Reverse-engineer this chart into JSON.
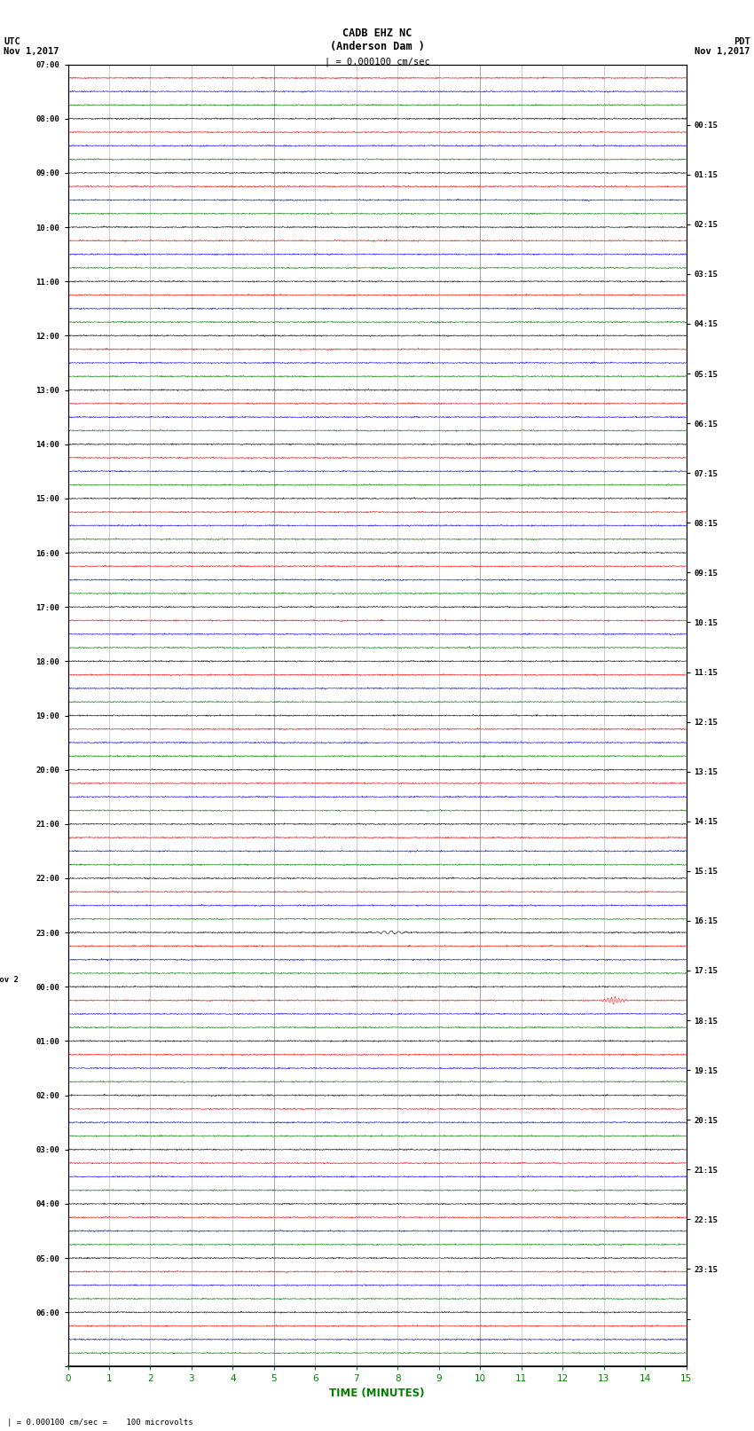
{
  "title_line1": "CADB EHZ NC",
  "title_line2": "(Anderson Dam )",
  "title_scale": "| = 0.000100 cm/sec",
  "left_label_top": "UTC",
  "left_label_date": "Nov 1,2017",
  "right_label_top": "PDT",
  "right_label_date": "Nov 1,2017",
  "xlabel": "TIME (MINUTES)",
  "bottom_note": "= 0.000100 cm/sec =    100 microvolts",
  "utc_labels": [
    "07:00",
    "08:00",
    "09:00",
    "10:00",
    "11:00",
    "12:00",
    "13:00",
    "14:00",
    "15:00",
    "16:00",
    "17:00",
    "18:00",
    "19:00",
    "20:00",
    "21:00",
    "22:00",
    "23:00",
    "00:00",
    "01:00",
    "02:00",
    "03:00",
    "04:00",
    "05:00",
    "06:00"
  ],
  "pdt_labels": [
    "00:15",
    "01:15",
    "02:15",
    "03:15",
    "04:15",
    "05:15",
    "06:15",
    "07:15",
    "08:15",
    "09:15",
    "10:15",
    "11:15",
    "12:15",
    "13:15",
    "14:15",
    "15:15",
    "16:15",
    "17:15",
    "18:15",
    "19:15",
    "20:15",
    "21:15",
    "22:15",
    "23:15"
  ],
  "n_rows": 96,
  "n_minutes": 15,
  "colors_cycle": [
    "black",
    "red",
    "blue",
    "green"
  ],
  "bg_color": "white",
  "grid_color": "#888888",
  "noise_amplitude": 0.025,
  "special_row_red": 64,
  "special_col_red": 7.8,
  "special_amplitude_red": 0.12,
  "special_row_green": 69,
  "special_col_green": 13.25,
  "special_amplitude_green": 0.35,
  "nov2_row": 68
}
